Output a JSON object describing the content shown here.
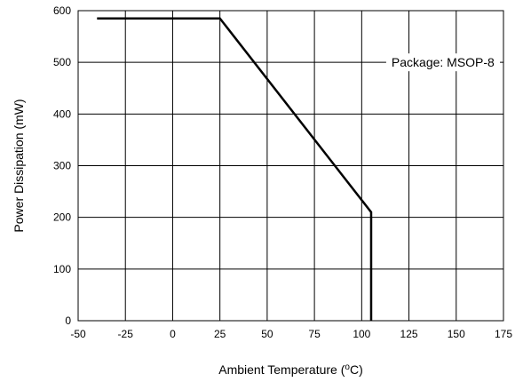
{
  "chart_data": {
    "type": "line",
    "title": "",
    "xlabel": {
      "text": "Ambient Temperature (",
      "superscript": "o",
      "suffix": "C)"
    },
    "ylabel": "Power Dissipation (mW)",
    "xlim": [
      -50,
      175
    ],
    "ylim": [
      0,
      600
    ],
    "xticks": [
      -50,
      -25,
      0,
      25,
      50,
      75,
      100,
      125,
      150,
      175
    ],
    "yticks": [
      0,
      100,
      200,
      300,
      400,
      500,
      600
    ],
    "grid": true,
    "series": [
      {
        "x": [
          -40,
          25,
          105,
          105
        ],
        "y": [
          585,
          585,
          210,
          0
        ]
      }
    ],
    "annotations": [
      {
        "text": "Package: MSOP-8",
        "x": 143,
        "y": 500
      }
    ]
  },
  "colors": {
    "line": "#000000",
    "grid": "#000000",
    "background": "#ffffff"
  }
}
